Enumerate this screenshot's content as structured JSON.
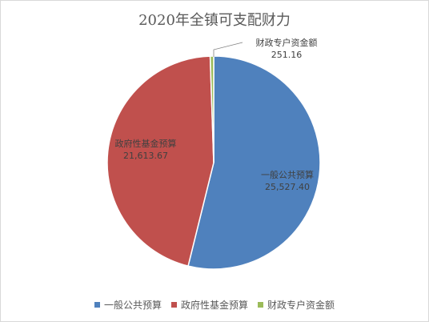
{
  "chart_data": {
    "type": "pie",
    "title": "2020年全镇可支配财力",
    "categories": [
      "一般公共预算",
      "政府性基金预算",
      "财政专户资金额"
    ],
    "values": [
      25527.4,
      21613.67,
      251.16
    ],
    "value_labels": [
      "25,527.40",
      "21,613.67",
      "251.16"
    ],
    "colors": [
      "#4f81bd",
      "#c0504d",
      "#9bbb59"
    ],
    "legend_position": "bottom"
  }
}
